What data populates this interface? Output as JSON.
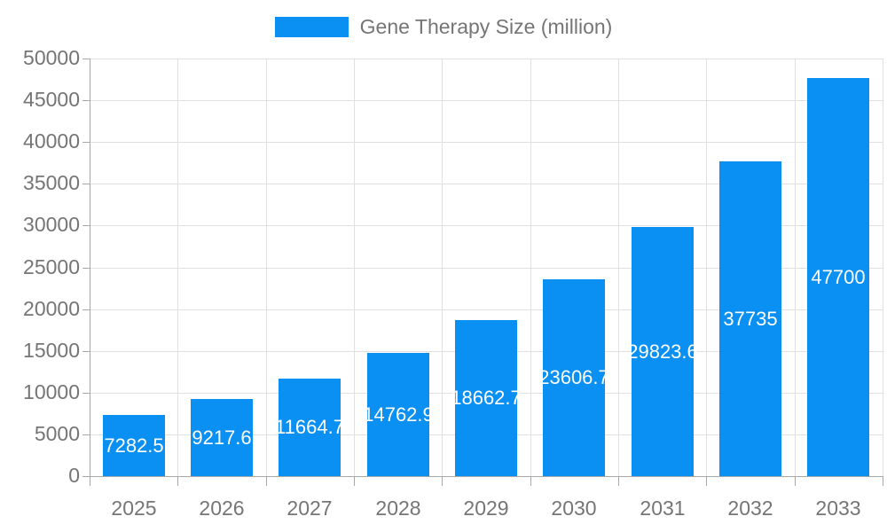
{
  "chart_data": {
    "type": "bar",
    "title": "",
    "legend_label": "Gene Therapy Size (million)",
    "legend_position": "top-center",
    "categories": [
      "2025",
      "2026",
      "2027",
      "2028",
      "2029",
      "2030",
      "2031",
      "2032",
      "2033"
    ],
    "values": [
      7282.5,
      9217.6,
      11664.7,
      14762.9,
      18662.7,
      23606.7,
      29823.6,
      37735,
      47700
    ],
    "bar_labels": [
      "7282.5",
      "9217.6",
      "11664.7",
      "14762.9",
      "18662.7",
      "23606.7",
      "29823.6",
      "37735",
      "47700"
    ],
    "xlabel": "",
    "ylabel": "",
    "ylim": [
      0,
      50000
    ],
    "yticks": [
      0,
      5000,
      10000,
      15000,
      20000,
      25000,
      30000,
      35000,
      40000,
      45000,
      50000
    ],
    "ytick_labels": [
      "0",
      "5000",
      "10000",
      "15000",
      "20000",
      "25000",
      "30000",
      "35000",
      "40000",
      "45000",
      "50000"
    ],
    "grid": true,
    "colors": {
      "bar": "#0a8ff2",
      "bar_label_text": "#ffffff",
      "tick_text": "#757575",
      "grid_line": "#e0e0e0",
      "axis_line": "#a8a8a8",
      "background": "#ffffff"
    }
  }
}
